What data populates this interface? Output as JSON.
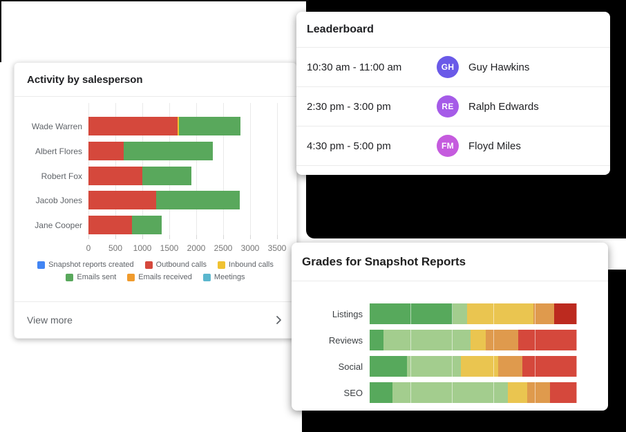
{
  "page": {
    "background": "#ffffff",
    "dark_panel_color": "#000000"
  },
  "activity_card": {
    "title": "Activity by salesperson",
    "footer": {
      "label": "View more",
      "chevron_icon": "chevron-right"
    },
    "legend_rows": [
      [
        {
          "label": "Snapshot reports created",
          "color": "#4285F4"
        },
        {
          "label": "Outbound calls",
          "color": "#D5483C"
        },
        {
          "label": "Inbound calls",
          "color": "#F0C232"
        }
      ],
      [
        {
          "label": "Emails sent",
          "color": "#59A85C"
        },
        {
          "label": "Emails received",
          "color": "#F09B2D"
        },
        {
          "label": "Meetings",
          "color": "#5BB7CE"
        }
      ]
    ]
  },
  "leaderboard_card": {
    "title": "Leaderboard",
    "rows": [
      {
        "time": "10:30 am - 11:00 am",
        "initials": "GH",
        "name": "Guy Hawkins",
        "avatar_color": "#6A5AE8"
      },
      {
        "time": "2:30 pm - 3:00 pm",
        "initials": "RE",
        "name": "Ralph Edwards",
        "avatar_color": "#A55BE8"
      },
      {
        "time": "4:30 pm - 5:00 pm",
        "initials": "FM",
        "name": "Floyd Miles",
        "avatar_color": "#C55BDE"
      }
    ]
  },
  "grades_card": {
    "title": "Grades for Snapshot Reports"
  },
  "chart_data": [
    {
      "type": "bar",
      "orientation": "horizontal-stacked",
      "title": "Activity by salesperson",
      "categories": [
        "Wade Warren",
        "Albert Flores",
        "Robert Fox",
        "Jacob Jones",
        "Jane Cooper"
      ],
      "series": [
        {
          "name": "Outbound calls",
          "color": "#D5483C",
          "values": [
            1650,
            650,
            1000,
            1250,
            800
          ]
        },
        {
          "name": "Inbound calls",
          "color": "#F0C232",
          "values": [
            25,
            0,
            0,
            0,
            0
          ]
        },
        {
          "name": "Emails sent",
          "color": "#59A85C",
          "values": [
            1130,
            1650,
            900,
            1550,
            550
          ]
        }
      ],
      "legend_entries": [
        "Snapshot reports created",
        "Outbound calls",
        "Inbound calls",
        "Emails sent",
        "Emails received",
        "Meetings"
      ],
      "xlabel": "",
      "ylabel": "",
      "xlim": [
        0,
        3500
      ],
      "x_ticks": [
        0,
        500,
        1000,
        1500,
        2000,
        2500,
        3000,
        3500
      ],
      "grid": true,
      "legend_position": "bottom"
    },
    {
      "type": "bar",
      "orientation": "horizontal-stacked-percent",
      "title": "Grades for Snapshot Reports",
      "categories": [
        "Listings",
        "Reviews",
        "Social",
        "SEO"
      ],
      "rows": [
        {
          "label": "Listings",
          "segments": [
            {
              "pct": 40,
              "color": "#57A95C"
            },
            {
              "pct": 7,
              "color": "#A3CD8E"
            },
            {
              "pct": 32,
              "color": "#EAC550"
            },
            {
              "pct": 10,
              "color": "#DF9A4D"
            },
            {
              "pct": 11,
              "color": "#BC2A1F"
            }
          ]
        },
        {
          "label": "Reviews",
          "segments": [
            {
              "pct": 6.5,
              "color": "#57A95C"
            },
            {
              "pct": 42,
              "color": "#A3CD8E"
            },
            {
              "pct": 7.5,
              "color": "#EAC550"
            },
            {
              "pct": 15.5,
              "color": "#DF9A4D"
            },
            {
              "pct": 28.5,
              "color": "#D5483C"
            }
          ]
        },
        {
          "label": "Social",
          "segments": [
            {
              "pct": 18,
              "color": "#57A95C"
            },
            {
              "pct": 26,
              "color": "#A3CD8E"
            },
            {
              "pct": 18,
              "color": "#EAC550"
            },
            {
              "pct": 11.5,
              "color": "#DF9A4D"
            },
            {
              "pct": 26.5,
              "color": "#D5483C"
            }
          ]
        },
        {
          "label": "SEO",
          "segments": [
            {
              "pct": 11,
              "color": "#57A95C"
            },
            {
              "pct": 55.5,
              "color": "#A3CD8E"
            },
            {
              "pct": 9.5,
              "color": "#EAC550"
            },
            {
              "pct": 11,
              "color": "#DF9A4D"
            },
            {
              "pct": 13,
              "color": "#D5483C"
            }
          ]
        }
      ],
      "grid": true,
      "xlim": [
        0,
        100
      ]
    }
  ]
}
